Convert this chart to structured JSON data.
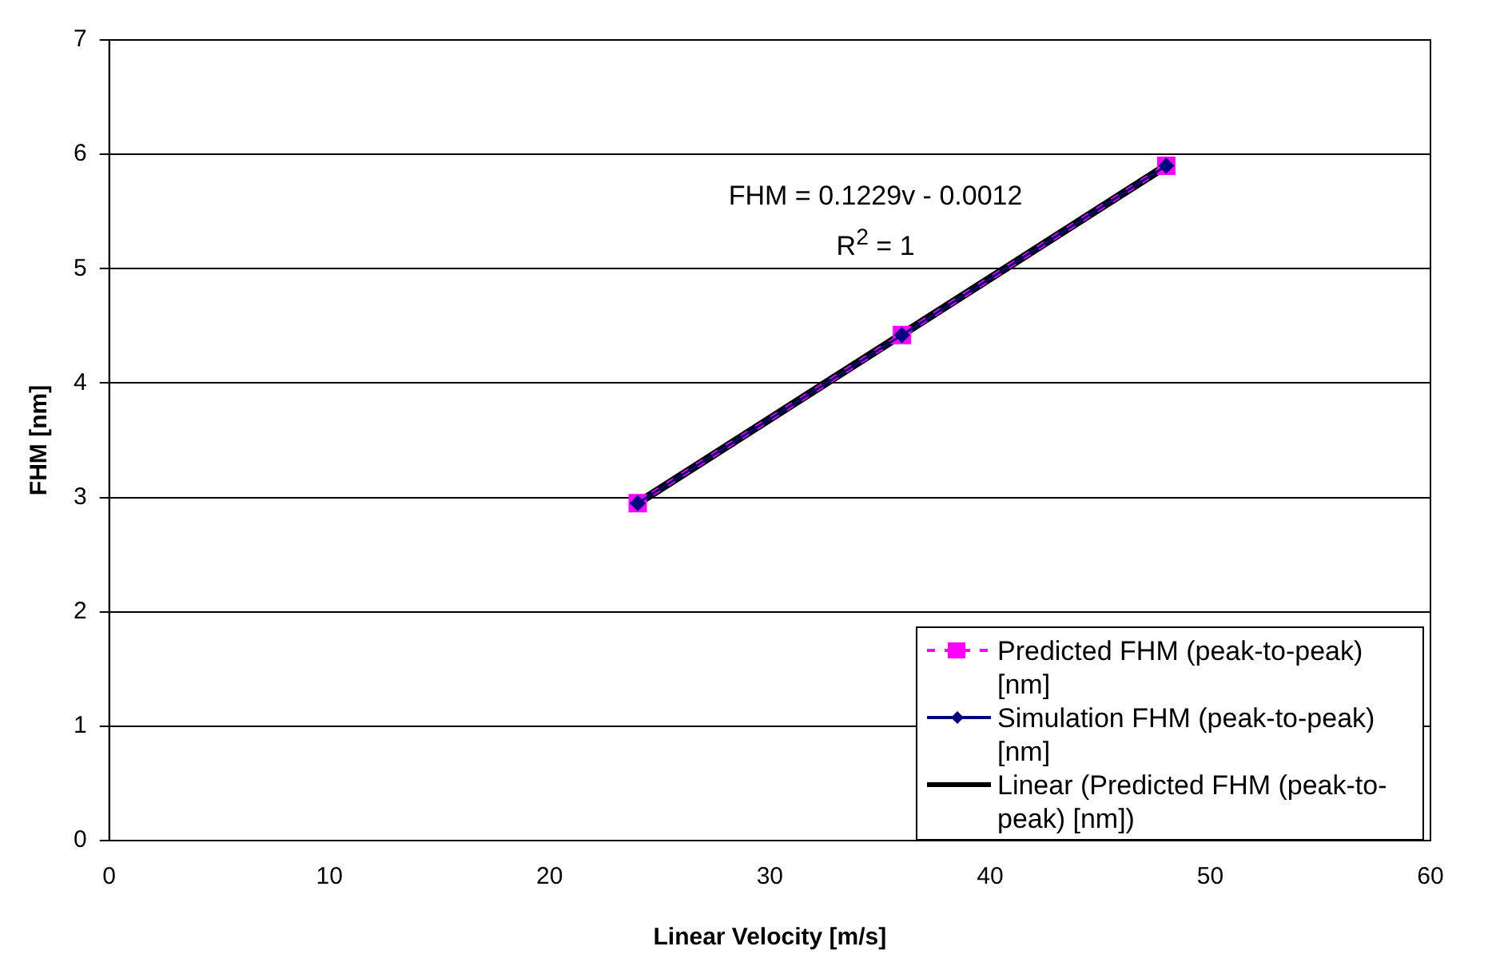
{
  "chart_data": {
    "type": "line",
    "xlabel": "Linear Velocity [m/s]",
    "ylabel": "FHM [nm]",
    "x": [
      24,
      36,
      48
    ],
    "series": [
      {
        "name": "Predicted FHM (peak-to-peak) [nm]",
        "color": "#ff00ff",
        "values": [
          2.95,
          4.42,
          5.9
        ],
        "marker": "square",
        "line_style": "dashed"
      },
      {
        "name": "Simulation FHM (peak-to-peak) [nm]",
        "color": "#000080",
        "values": [
          2.95,
          4.42,
          5.9
        ],
        "marker": "diamond",
        "line_style": "solid"
      },
      {
        "name": "Linear (Predicted FHM (peak-to-peak) [nm])",
        "color": "#000000",
        "type": "line",
        "x": [
          24,
          48
        ],
        "values": [
          2.95,
          5.9
        ],
        "marker": "none",
        "line_style": "solid"
      }
    ],
    "xlim": [
      0,
      60
    ],
    "xticks": [
      0,
      10,
      20,
      30,
      40,
      50,
      60
    ],
    "ylim": [
      0,
      7
    ],
    "yticks": [
      0,
      1,
      2,
      3,
      4,
      5,
      6,
      7
    ],
    "grid": "y",
    "legend": "bottom right",
    "annotations": [
      "FHM = 0.1229v - 0.0012",
      "R$^{2}$ = 1"
    ]
  }
}
